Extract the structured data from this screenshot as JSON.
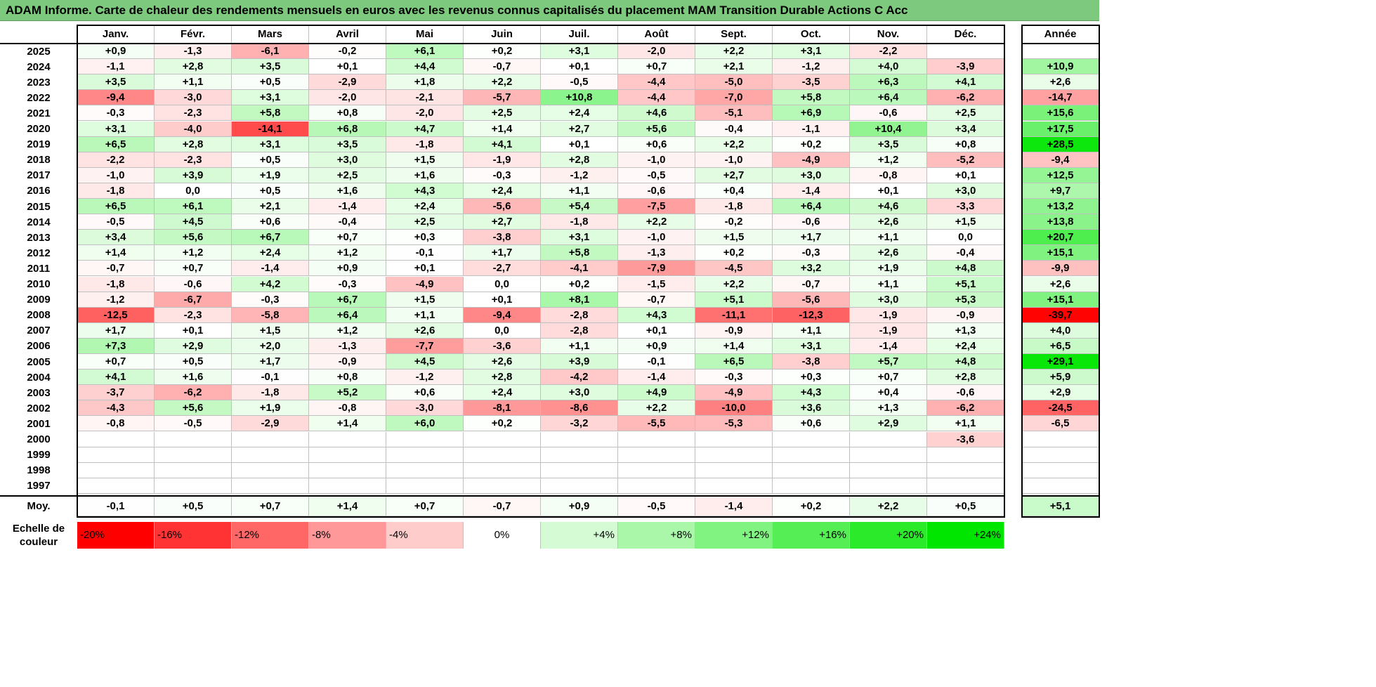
{
  "title": "ADAM Informe. Carte de chaleur des rendements mensuels en euros avec les revenus connus capitalisés du placement MAM Transition Durable Actions C Acc",
  "chart_data": {
    "type": "heatmap",
    "title": "ADAM Informe. Carte de chaleur des rendements mensuels en euros avec les revenus connus capitalisés du placement MAM Transition Durable Actions C Acc",
    "months": [
      "Janv.",
      "Févr.",
      "Mars",
      "Avril",
      "Mai",
      "Juin",
      "Juil.",
      "Août",
      "Sept.",
      "Oct.",
      "Nov.",
      "Déc."
    ],
    "year_header": "Année",
    "rows": [
      {
        "year": "2025",
        "values": [
          "+0,9",
          "-1,3",
          "-6,1",
          "-0,2",
          "+6,1",
          "+0,2",
          "+3,1",
          "-2,0",
          "+2,2",
          "+3,1",
          "-2,2",
          ""
        ],
        "annual": ""
      },
      {
        "year": "2024",
        "values": [
          "-1,1",
          "+2,8",
          "+3,5",
          "+0,1",
          "+4,4",
          "-0,7",
          "+0,1",
          "+0,7",
          "+2,1",
          "-1,2",
          "+4,0",
          "-3,9"
        ],
        "annual": "+10,9"
      },
      {
        "year": "2023",
        "values": [
          "+3,5",
          "+1,1",
          "+0,5",
          "-2,9",
          "+1,8",
          "+2,2",
          "-0,5",
          "-4,4",
          "-5,0",
          "-3,5",
          "+6,3",
          "+4,1"
        ],
        "annual": "+2,6"
      },
      {
        "year": "2022",
        "values": [
          "-9,4",
          "-3,0",
          "+3,1",
          "-2,0",
          "-2,1",
          "-5,7",
          "+10,8",
          "-4,4",
          "-7,0",
          "+5,8",
          "+6,4",
          "-6,2"
        ],
        "annual": "-14,7"
      },
      {
        "year": "2021",
        "values": [
          "-0,3",
          "-2,3",
          "+5,8",
          "+0,8",
          "-2,0",
          "+2,5",
          "+2,4",
          "+4,6",
          "-5,1",
          "+6,9",
          "-0,6",
          "+2,5"
        ],
        "annual": "+15,6"
      },
      {
        "year": "2020",
        "values": [
          "+3,1",
          "-4,0",
          "-14,1",
          "+6,8",
          "+4,7",
          "+1,4",
          "+2,7",
          "+5,6",
          "-0,4",
          "-1,1",
          "+10,4",
          "+3,4"
        ],
        "annual": "+17,5"
      },
      {
        "year": "2019",
        "values": [
          "+6,5",
          "+2,8",
          "+3,1",
          "+3,5",
          "-1,8",
          "+4,1",
          "+0,1",
          "+0,6",
          "+2,2",
          "+0,2",
          "+3,5",
          "+0,8"
        ],
        "annual": "+28,5"
      },
      {
        "year": "2018",
        "values": [
          "-2,2",
          "-2,3",
          "+0,5",
          "+3,0",
          "+1,5",
          "-1,9",
          "+2,8",
          "-1,0",
          "-1,0",
          "-4,9",
          "+1,2",
          "-5,2"
        ],
        "annual": "-9,4"
      },
      {
        "year": "2017",
        "values": [
          "-1,0",
          "+3,9",
          "+1,9",
          "+2,5",
          "+1,6",
          "-0,3",
          "-1,2",
          "-0,5",
          "+2,7",
          "+3,0",
          "-0,8",
          "+0,1"
        ],
        "annual": "+12,5"
      },
      {
        "year": "2016",
        "values": [
          "-1,8",
          "0,0",
          "+0,5",
          "+1,6",
          "+4,3",
          "+2,4",
          "+1,1",
          "-0,6",
          "+0,4",
          "-1,4",
          "+0,1",
          "+3,0"
        ],
        "annual": "+9,7"
      },
      {
        "year": "2015",
        "values": [
          "+6,5",
          "+6,1",
          "+2,1",
          "-1,4",
          "+2,4",
          "-5,6",
          "+5,4",
          "-7,5",
          "-1,8",
          "+6,4",
          "+4,6",
          "-3,3"
        ],
        "annual": "+13,2"
      },
      {
        "year": "2014",
        "values": [
          "-0,5",
          "+4,5",
          "+0,6",
          "-0,4",
          "+2,5",
          "+2,7",
          "-1,8",
          "+2,2",
          "-0,2",
          "-0,6",
          "+2,6",
          "+1,5"
        ],
        "annual": "+13,8"
      },
      {
        "year": "2013",
        "values": [
          "+3,4",
          "+5,6",
          "+6,7",
          "+0,7",
          "+0,3",
          "-3,8",
          "+3,1",
          "-1,0",
          "+1,5",
          "+1,7",
          "+1,1",
          "0,0"
        ],
        "annual": "+20,7"
      },
      {
        "year": "2012",
        "values": [
          "+1,4",
          "+1,2",
          "+2,4",
          "+1,2",
          "-0,1",
          "+1,7",
          "+5,8",
          "-1,3",
          "+0,2",
          "-0,3",
          "+2,6",
          "-0,4"
        ],
        "annual": "+15,1"
      },
      {
        "year": "2011",
        "values": [
          "-0,7",
          "+0,7",
          "-1,4",
          "+0,9",
          "+0,1",
          "-2,7",
          "-4,1",
          "-7,9",
          "-4,5",
          "+3,2",
          "+1,9",
          "+4,8"
        ],
        "annual": "-9,9"
      },
      {
        "year": "2010",
        "values": [
          "-1,8",
          "-0,6",
          "+4,2",
          "-0,3",
          "-4,9",
          "0,0",
          "+0,2",
          "-1,5",
          "+2,2",
          "-0,7",
          "+1,1",
          "+5,1"
        ],
        "annual": "+2,6"
      },
      {
        "year": "2009",
        "values": [
          "-1,2",
          "-6,7",
          "-0,3",
          "+6,7",
          "+1,5",
          "+0,1",
          "+8,1",
          "-0,7",
          "+5,1",
          "-5,6",
          "+3,0",
          "+5,3"
        ],
        "annual": "+15,1"
      },
      {
        "year": "2008",
        "values": [
          "-12,5",
          "-2,3",
          "-5,8",
          "+6,4",
          "+1,1",
          "-9,4",
          "-2,8",
          "+4,3",
          "-11,1",
          "-12,3",
          "-1,9",
          "-0,9"
        ],
        "annual": "-39,7"
      },
      {
        "year": "2007",
        "values": [
          "+1,7",
          "+0,1",
          "+1,5",
          "+1,2",
          "+2,6",
          "0,0",
          "-2,8",
          "+0,1",
          "-0,9",
          "+1,1",
          "-1,9",
          "+1,3"
        ],
        "annual": "+4,0"
      },
      {
        "year": "2006",
        "values": [
          "+7,3",
          "+2,9",
          "+2,0",
          "-1,3",
          "-7,7",
          "-3,6",
          "+1,1",
          "+0,9",
          "+1,4",
          "+3,1",
          "-1,4",
          "+2,4"
        ],
        "annual": "+6,5"
      },
      {
        "year": "2005",
        "values": [
          "+0,7",
          "+0,5",
          "+1,7",
          "-0,9",
          "+4,5",
          "+2,6",
          "+3,9",
          "-0,1",
          "+6,5",
          "-3,8",
          "+5,7",
          "+4,8"
        ],
        "annual": "+29,1"
      },
      {
        "year": "2004",
        "values": [
          "+4,1",
          "+1,6",
          "-0,1",
          "+0,8",
          "-1,2",
          "+2,8",
          "-4,2",
          "-1,4",
          "-0,3",
          "+0,3",
          "+0,7",
          "+2,8"
        ],
        "annual": "+5,9"
      },
      {
        "year": "2003",
        "values": [
          "-3,7",
          "-6,2",
          "-1,8",
          "+5,2",
          "+0,6",
          "+2,4",
          "+3,0",
          "+4,9",
          "-4,9",
          "+4,3",
          "+0,4",
          "-0,6"
        ],
        "annual": "+2,9"
      },
      {
        "year": "2002",
        "values": [
          "-4,3",
          "+5,6",
          "+1,9",
          "-0,8",
          "-3,0",
          "-8,1",
          "-8,6",
          "+2,2",
          "-10,0",
          "+3,6",
          "+1,3",
          "-6,2"
        ],
        "annual": "-24,5"
      },
      {
        "year": "2001",
        "values": [
          "-0,8",
          "-0,5",
          "-2,9",
          "+1,4",
          "+6,0",
          "+0,2",
          "-3,2",
          "-5,5",
          "-5,3",
          "+0,6",
          "+2,9",
          "+1,1"
        ],
        "annual": "-6,5"
      },
      {
        "year": "2000",
        "values": [
          "",
          "",
          "",
          "",
          "",
          "",
          "",
          "",
          "",
          "",
          "",
          "-3,6"
        ],
        "annual": ""
      },
      {
        "year": "1999",
        "values": [
          "",
          "",
          "",
          "",
          "",
          "",
          "",
          "",
          "",
          "",
          "",
          ""
        ],
        "annual": ""
      },
      {
        "year": "1998",
        "values": [
          "",
          "",
          "",
          "",
          "",
          "",
          "",
          "",
          "",
          "",
          "",
          ""
        ],
        "annual": ""
      },
      {
        "year": "1997",
        "values": [
          "",
          "",
          "",
          "",
          "",
          "",
          "",
          "",
          "",
          "",
          "",
          ""
        ],
        "annual": ""
      }
    ],
    "average": {
      "label": "Moy.",
      "values": [
        "-0,1",
        "+0,5",
        "+0,7",
        "+1,4",
        "+0,7",
        "-0,7",
        "+0,9",
        "-0,5",
        "-1,4",
        "+0,2",
        "+2,2",
        "+0,5"
      ],
      "annual": "+5,1"
    },
    "scale": {
      "label_line1": "Echelle de",
      "label_line2": "couleur",
      "stops": [
        "-20%",
        "-16%",
        "-12%",
        "-8%",
        "-4%",
        "0%",
        "+4%",
        "+8%",
        "+12%",
        "+16%",
        "+20%",
        "+24%"
      ],
      "negative_color": "#ff0000",
      "zero_color": "#ffffff",
      "positive_color": "#00e600"
    },
    "unit": "%"
  }
}
